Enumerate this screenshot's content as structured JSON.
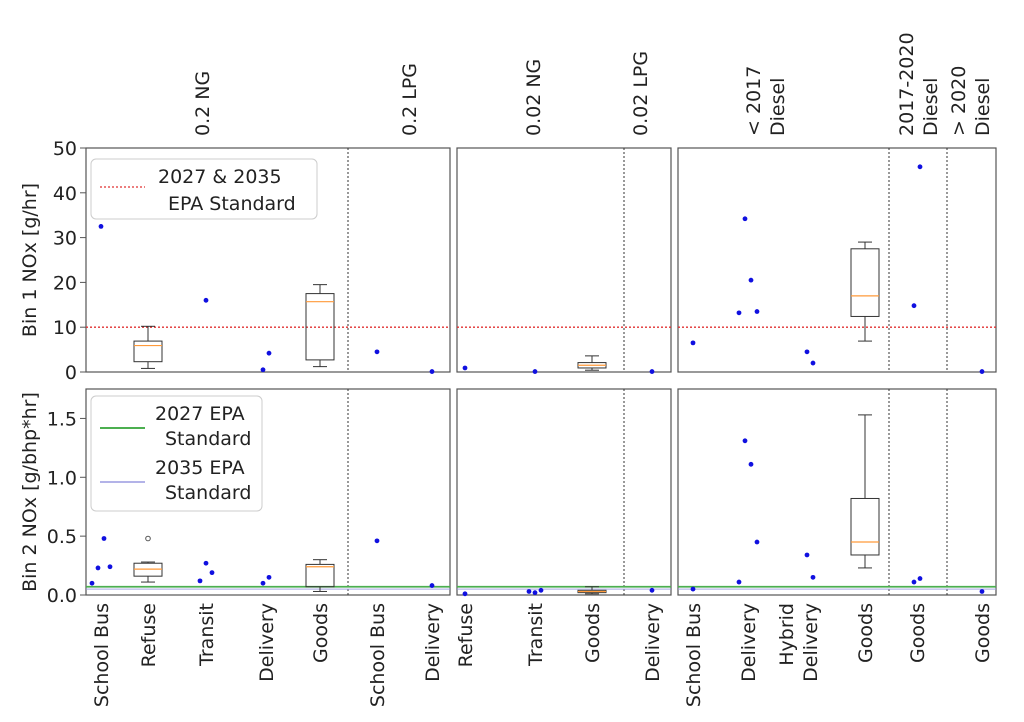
{
  "figure": {
    "bin1_ylabel": "Bin 1 NOx [g/hr]",
    "bin2_ylabel": "Bin 2 NOx [g/bhp*hr]",
    "legend_top": [
      "2027 & 2035",
      "EPA Standard"
    ],
    "legend_bottom_1": [
      "2027 EPA",
      "Standard"
    ],
    "legend_bottom_2": [
      "2035 EPA",
      "Standard"
    ],
    "colors": {
      "point": "#1010e0",
      "median": "#ff9a3a",
      "bin1_standard": "#e03030",
      "bin1_standard_style": "dotted",
      "std_2027": "#4caf50",
      "std_2035": "#9a9ae0",
      "frame": "#555555",
      "divider": "#333333"
    },
    "panels": [
      {
        "groups": [
          {
            "label": [
              "0.2 NG"
            ],
            "categories": [
              "School Bus",
              "Refuse",
              "Transit",
              "Delivery",
              "Goods"
            ]
          },
          {
            "label": [
              "0.2 LPG"
            ],
            "categories": [
              "School Bus",
              "Delivery"
            ]
          }
        ]
      },
      {
        "groups": [
          {
            "label": [
              "0.02 NG"
            ],
            "categories": [
              "Refuse",
              "Transit",
              "Goods"
            ]
          },
          {
            "label": [
              "0.02 LPG"
            ],
            "categories": [
              "Delivery"
            ]
          }
        ]
      },
      {
        "groups": [
          {
            "label": [
              "< 2017",
              "Diesel"
            ],
            "categories": [
              "School Bus",
              "Delivery",
              "Hybrid\nDelivery",
              "Goods"
            ]
          },
          {
            "label": [
              "2017-2020",
              "Diesel"
            ],
            "categories": [
              "Goods"
            ]
          },
          {
            "label": [
              "> 2020",
              "Diesel"
            ],
            "categories": [
              "Goods"
            ]
          }
        ]
      }
    ]
  },
  "chart_data": [
    {
      "type": "box",
      "title": "",
      "ylabel": "Bin 1 NOx [g/hr]",
      "ylim": [
        0,
        50
      ],
      "yticks": [
        0,
        10,
        20,
        30,
        40,
        50
      ],
      "standard_line": {
        "name": "2027 & 2035 EPA Standard",
        "y": 10
      },
      "categories": [
        "0.2 NG School Bus",
        "0.2 NG Refuse",
        "0.2 NG Transit",
        "0.2 NG Delivery",
        "0.2 NG Goods",
        "0.2 LPG School Bus",
        "0.2 LPG Delivery",
        "0.02 NG Refuse",
        "0.02 NG Transit",
        "0.02 NG Goods",
        "0.02 LPG Delivery",
        "< 2017 Diesel School Bus",
        "< 2017 Diesel Delivery",
        "< 2017 Diesel Hybrid Delivery",
        "< 2017 Diesel Goods",
        "2017-2020 Diesel Goods",
        "> 2020 Diesel Goods"
      ],
      "points": [
        [
          32.5
        ],
        [],
        [
          16
        ],
        [
          0.5,
          4.2
        ],
        [],
        [
          4.5
        ],
        [
          0.1
        ],
        [
          0.9
        ],
        [
          0.1
        ],
        [],
        [
          0.1
        ],
        [
          6.5
        ],
        [
          13.2,
          34.2,
          20.5,
          13.5
        ],
        [
          4.5,
          2.0
        ],
        [],
        [
          14.8,
          45.8
        ],
        [
          0.1
        ]
      ],
      "boxes": [
        null,
        {
          "whislo": 0.8,
          "q1": 2.3,
          "med": 5.9,
          "q3": 6.9,
          "whishi": 10.2
        },
        null,
        null,
        {
          "whislo": 1.2,
          "q1": 2.7,
          "med": 15.7,
          "q3": 17.5,
          "whishi": 19.5
        },
        null,
        null,
        null,
        null,
        {
          "whislo": 0.4,
          "q1": 0.9,
          "med": 1.5,
          "q3": 2.1,
          "whishi": 3.6
        },
        null,
        null,
        null,
        null,
        {
          "whislo": 6.9,
          "q1": 12.4,
          "med": 17.0,
          "q3": 27.5,
          "whishi": 29.0
        },
        null,
        null
      ]
    },
    {
      "type": "box",
      "title": "",
      "ylabel": "Bin 2 NOx [g/bhp*hr]",
      "ylim": [
        0,
        1.75
      ],
      "yticks": [
        0.0,
        0.5,
        1.0,
        1.5
      ],
      "standard_lines": [
        {
          "name": "2027 EPA Standard",
          "y": 0.07
        },
        {
          "name": "2035 EPA Standard",
          "y": 0.05
        }
      ],
      "categories": [
        "0.2 NG School Bus",
        "0.2 NG Refuse",
        "0.2 NG Transit",
        "0.2 NG Delivery",
        "0.2 NG Goods",
        "0.2 LPG School Bus",
        "0.2 LPG Delivery",
        "0.02 NG Refuse",
        "0.02 NG Transit",
        "0.02 NG Goods",
        "0.02 LPG Delivery",
        "< 2017 Diesel School Bus",
        "< 2017 Diesel Delivery",
        "< 2017 Diesel Hybrid Delivery",
        "< 2017 Diesel Goods",
        "2017-2020 Diesel Goods",
        "> 2020 Diesel Goods"
      ],
      "points": [
        [
          0.1,
          0.23,
          0.48,
          0.24
        ],
        [],
        [
          0.12,
          0.27,
          0.19
        ],
        [
          0.1,
          0.15
        ],
        [],
        [
          0.46
        ],
        [
          0.08
        ],
        [
          0.01
        ],
        [
          0.03,
          0.02,
          0.04
        ],
        [],
        [
          0.04
        ],
        [
          0.05
        ],
        [
          0.11,
          1.31,
          1.11,
          0.45
        ],
        [
          0.34,
          0.15
        ],
        [],
        [
          0.11,
          0.14
        ],
        [
          0.03
        ]
      ],
      "fliers": [
        [],
        [
          0.48
        ],
        [],
        [],
        [],
        [],
        [],
        [],
        [],
        [],
        [],
        [],
        [],
        [],
        [],
        [],
        []
      ],
      "boxes": [
        null,
        {
          "whislo": 0.11,
          "q1": 0.16,
          "med": 0.22,
          "q3": 0.27,
          "whishi": 0.28
        },
        null,
        null,
        {
          "whislo": 0.03,
          "q1": 0.07,
          "med": 0.24,
          "q3": 0.26,
          "whishi": 0.3
        },
        null,
        null,
        null,
        null,
        {
          "whislo": 0.01,
          "q1": 0.02,
          "med": 0.03,
          "q3": 0.04,
          "whishi": 0.07
        },
        null,
        null,
        null,
        null,
        {
          "whislo": 0.23,
          "q1": 0.34,
          "med": 0.45,
          "q3": 0.82,
          "whishi": 1.53
        },
        null,
        null
      ]
    }
  ]
}
